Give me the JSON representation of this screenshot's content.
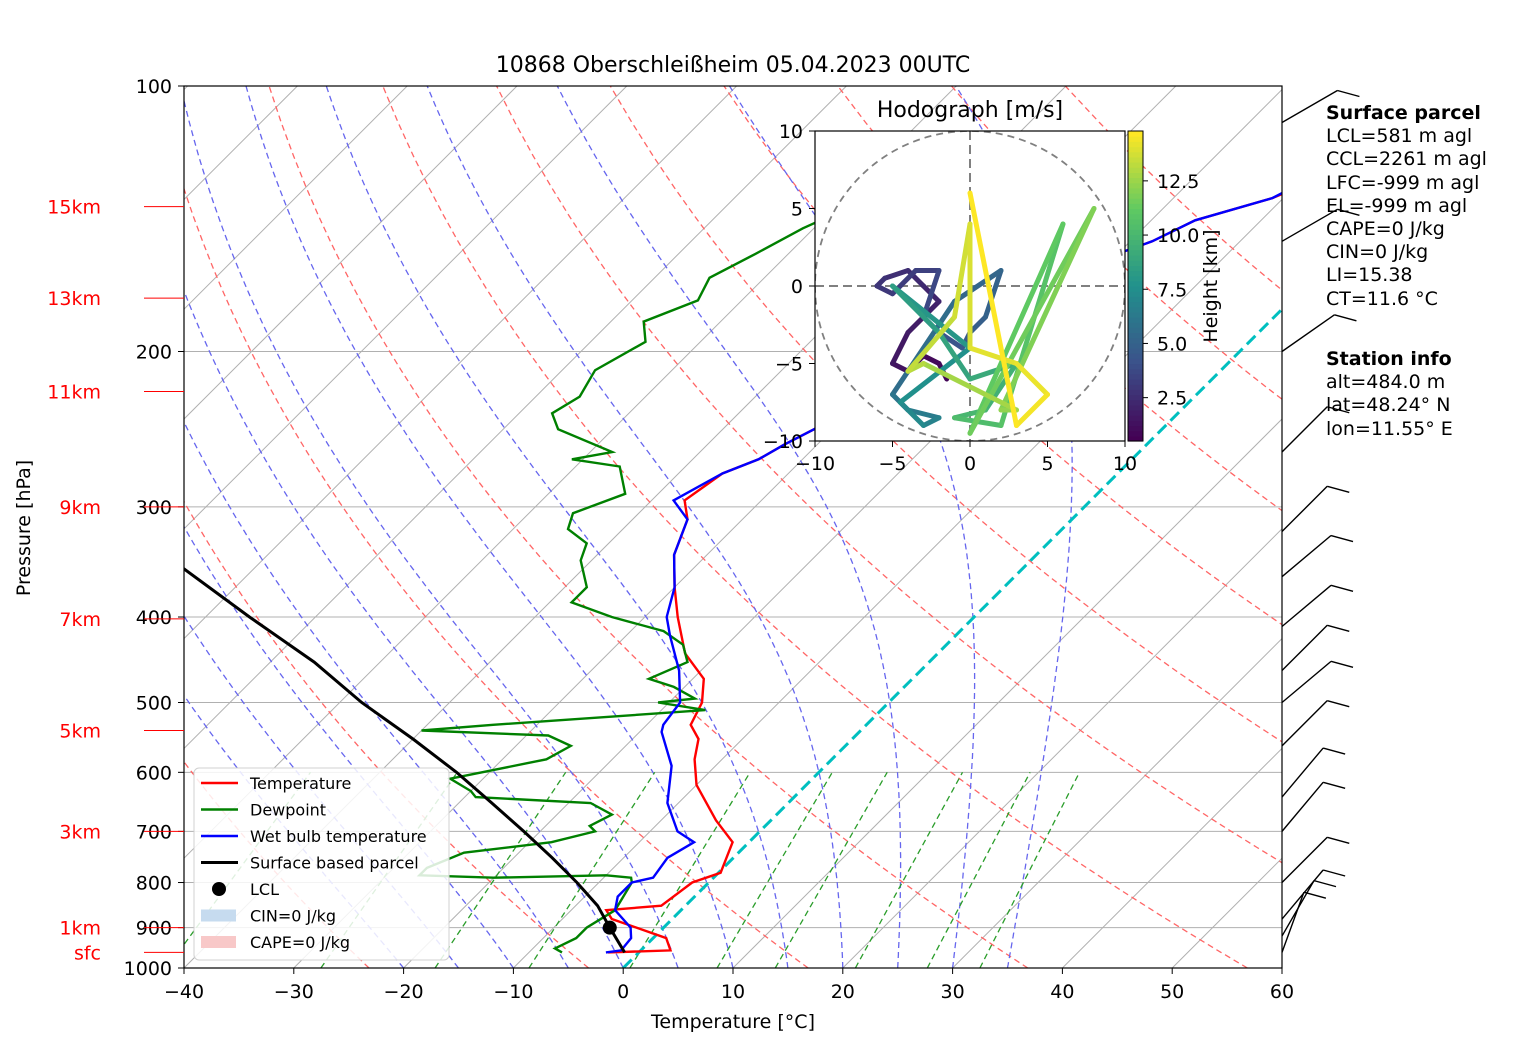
{
  "chart_data": [
    {
      "type": "line",
      "subtype": "skew-T log-p",
      "title": "10868 Oberschleißheim 05.04.2023 00UTC",
      "xlabel": "Temperature [°C]",
      "ylabel": "Pressure [hPa]",
      "xlim": [
        -40,
        60
      ],
      "ylim": [
        1000,
        100
      ],
      "y_scale": "log",
      "x_ticks": [
        "−40",
        "−30",
        "−20",
        "−10",
        "0",
        "10",
        "20",
        "30",
        "40",
        "50",
        "60"
      ],
      "y_ticks": [
        "100",
        "200",
        "300",
        "400",
        "500",
        "600",
        "700",
        "800",
        "900",
        "1000"
      ],
      "height_labels": [
        {
          "label": "15km",
          "p": 137
        },
        {
          "label": "13km",
          "p": 174
        },
        {
          "label": "11km",
          "p": 222
        },
        {
          "label": "9km",
          "p": 300
        },
        {
          "label": "7km",
          "p": 402
        },
        {
          "label": "5km",
          "p": 538
        },
        {
          "label": "3km",
          "p": 700
        },
        {
          "label": "1km",
          "p": 900
        },
        {
          "label": "sfc",
          "p": 960
        }
      ],
      "series": [
        {
          "name": "Temperature",
          "color": "#ff0000",
          "points": [
            [
              -2.8,
              960
            ],
            [
              2.7,
              955
            ],
            [
              1.2,
              925
            ],
            [
              -5.5,
              880
            ],
            [
              -6.8,
              860
            ],
            [
              -2.2,
              850
            ],
            [
              -1.5,
              800
            ],
            [
              0.2,
              780
            ],
            [
              -1.5,
              720
            ],
            [
              -5,
              680
            ],
            [
              -10,
              620
            ],
            [
              -12.5,
              580
            ],
            [
              -14,
              550
            ],
            [
              -16,
              530
            ],
            [
              -17,
              500
            ],
            [
              -19,
              470
            ],
            [
              -23,
              440
            ],
            [
              -27,
              400
            ],
            [
              -30,
              370
            ],
            [
              -33,
              340
            ],
            [
              -35,
              310
            ],
            [
              -37,
              295
            ],
            [
              -36,
              275
            ],
            [
              -34,
              265
            ],
            [
              -33,
              255
            ],
            [
              -31,
              240
            ],
            [
              -30,
              225
            ],
            [
              -29,
              210
            ],
            [
              -28,
              195
            ],
            [
              -27,
              185
            ],
            [
              -27,
              176
            ],
            [
              -23,
              170
            ],
            [
              -22,
              160
            ],
            [
              -18,
              150
            ],
            [
              -16,
              142
            ],
            [
              -11,
              134
            ],
            [
              -9.5,
              130
            ],
            [
              -9.5,
              128
            ]
          ]
        },
        {
          "name": "Dewpoint",
          "color": "#008000",
          "points": [
            [
              -7,
              960
            ],
            [
              -8,
              950
            ],
            [
              -7,
              925
            ],
            [
              -7,
              900
            ],
            [
              -6,
              860
            ],
            [
              -7,
              800
            ],
            [
              -7.5,
              790
            ],
            [
              -10,
              785
            ],
            [
              -20,
              790
            ],
            [
              -27,
              785
            ],
            [
              -27,
              770
            ],
            [
              -25,
              740
            ],
            [
              -18,
              720
            ],
            [
              -15,
              700
            ],
            [
              -16,
              690
            ],
            [
              -15,
              670
            ],
            [
              -18,
              650
            ],
            [
              -29,
              640
            ],
            [
              -30,
              630
            ],
            [
              -33,
              610
            ],
            [
              -26,
              580
            ],
            [
              -25,
              560
            ],
            [
              -28,
              545
            ],
            [
              -40,
              538
            ],
            [
              -34,
              530
            ],
            [
              -16,
              510
            ],
            [
              -21,
              500
            ],
            [
              -18,
              495
            ],
            [
              -21,
              480
            ],
            [
              -24,
              470
            ],
            [
              -22,
              450
            ],
            [
              -24,
              430
            ],
            [
              -27,
              415
            ],
            [
              -33,
              400
            ],
            [
              -38,
              385
            ],
            [
              -38,
              370
            ],
            [
              -41,
              345
            ],
            [
              -42,
              330
            ],
            [
              -45,
              318
            ],
            [
              -46,
              305
            ],
            [
              -43,
              290
            ],
            [
              -46,
              270
            ],
            [
              -51,
              265
            ],
            [
              -48,
              260
            ],
            [
              -55,
              245
            ],
            [
              -57,
              235
            ],
            [
              -56,
              225
            ],
            [
              -57,
              210
            ],
            [
              -55,
              195
            ],
            [
              -57,
              185
            ],
            [
              -54,
              175
            ],
            [
              -55,
              165
            ],
            [
              -53,
              155
            ],
            [
              -51,
              145
            ],
            [
              -48,
              135
            ],
            [
              -45,
              130
            ],
            [
              -44,
              128
            ]
          ]
        },
        {
          "name": "Wet bulb temperature",
          "color": "#0000ff",
          "points": [
            [
              -3,
              960
            ],
            [
              -1.8,
              955
            ],
            [
              -2,
              925
            ],
            [
              -3,
              900
            ],
            [
              -6,
              860
            ],
            [
              -7,
              830
            ],
            [
              -7,
              800
            ],
            [
              -5.5,
              790
            ],
            [
              -6,
              750
            ],
            [
              -5,
              720
            ],
            [
              -7.5,
              700
            ],
            [
              -11,
              650
            ],
            [
              -14,
              590
            ],
            [
              -18,
              540
            ],
            [
              -18.5,
              530
            ],
            [
              -19,
              500
            ],
            [
              -22,
              460
            ],
            [
              -26,
              420
            ],
            [
              -28,
              400
            ],
            [
              -30,
              370
            ],
            [
              -33,
              340
            ],
            [
              -35,
              310
            ],
            [
              -38,
              295
            ],
            [
              -36,
              275
            ],
            [
              -34,
              265
            ],
            [
              -33,
              255
            ],
            [
              -31,
              240
            ],
            [
              -30,
              225
            ],
            [
              -29.5,
              210
            ],
            [
              -28.5,
              195
            ],
            [
              -27.5,
              185
            ],
            [
              -27.5,
              176
            ],
            [
              -23,
              170
            ],
            [
              -22,
              160
            ],
            [
              -18,
              150
            ],
            [
              -16,
              142
            ],
            [
              -11,
              134
            ],
            [
              -10,
              130
            ],
            [
              -10,
              128
            ]
          ]
        },
        {
          "name": "Surface based parcel",
          "color": "#000000",
          "points": [
            [
              -1.3,
              960
            ],
            [
              -4.9,
              900
            ],
            [
              -8,
              850
            ],
            [
              -12,
              800
            ],
            [
              -16.5,
              750
            ],
            [
              -21.5,
              700
            ],
            [
              -27,
              650
            ],
            [
              -33,
              600
            ],
            [
              -40,
              550
            ],
            [
              -48,
              500
            ],
            [
              -56,
              450
            ],
            [
              -66,
              400
            ],
            [
              -77,
              350
            ],
            [
              -89,
              300
            ]
          ]
        }
      ],
      "lcl": {
        "name": "LCL",
        "t": -4.9,
        "p": 900
      },
      "legend": [
        "Temperature",
        "Dewpoint",
        "Wet bulb temperature",
        "Surface based parcel",
        "LCL",
        "CIN=0 J/kg",
        "CAPE=0 J/kg"
      ],
      "legend_position": "lower-left",
      "grid": true
    },
    {
      "type": "line",
      "subtype": "hodograph",
      "title": "Hodograph [m/s]",
      "xlim": [
        -10,
        10
      ],
      "ylim": [
        -10,
        10
      ],
      "x_ticks": [
        "−10",
        "−5",
        "0",
        "5",
        "10"
      ],
      "y_ticks": [
        "−10",
        "−5",
        "0",
        "5",
        "10"
      ],
      "colorbar": {
        "label": "Height [km]",
        "ticks": [
          "2.5",
          "5.0",
          "7.5",
          "10.0",
          "12.5"
        ],
        "range": [
          0.5,
          14.8
        ]
      },
      "wind_points": [
        [
          -1.5,
          -6,
          0.5
        ],
        [
          -2,
          -5,
          0.7
        ],
        [
          -3,
          -4.5,
          0.9
        ],
        [
          -4,
          -5.5,
          1.1
        ],
        [
          -5,
          -5,
          1.3
        ],
        [
          -4,
          -3,
          1.5
        ],
        [
          -3,
          -2,
          1.7
        ],
        [
          -2,
          -1,
          1.9
        ],
        [
          -3,
          0,
          2.1
        ],
        [
          -4,
          1,
          2.3
        ],
        [
          -5.5,
          0.5,
          2.5
        ],
        [
          -6,
          0,
          2.7
        ],
        [
          -5,
          -0.5,
          2.9
        ],
        [
          -3.5,
          1,
          3.1
        ],
        [
          -2,
          1,
          3.3
        ],
        [
          -3,
          -2,
          3.6
        ],
        [
          -2,
          -3,
          3.9
        ],
        [
          -0.5,
          -4,
          4.2
        ],
        [
          0,
          -3,
          4.5
        ],
        [
          1,
          -2,
          4.8
        ],
        [
          2,
          1,
          5.0
        ],
        [
          -1,
          -1,
          5.2
        ],
        [
          -5,
          -7,
          5.6
        ],
        [
          -4,
          -8,
          6.0
        ],
        [
          -2,
          -8.5,
          6.4
        ],
        [
          -3,
          -9,
          6.8
        ],
        [
          -4.5,
          -7.5,
          7.2
        ],
        [
          0,
          -4,
          7.6
        ],
        [
          -5,
          0,
          8.0
        ],
        [
          -2,
          -3,
          8.4
        ],
        [
          0,
          -6,
          8.8
        ],
        [
          3,
          -5,
          9.2
        ],
        [
          1,
          -8,
          9.6
        ],
        [
          -1,
          -8.5,
          10.0
        ],
        [
          2,
          -9,
          10.4
        ],
        [
          6,
          4,
          10.8
        ],
        [
          0,
          -9.5,
          11.2
        ],
        [
          8,
          5,
          11.6
        ],
        [
          2,
          -8,
          12.0
        ],
        [
          3,
          -8,
          12.4
        ],
        [
          -3,
          -5,
          12.8
        ],
        [
          -4,
          -5.5,
          13.2
        ],
        [
          -1,
          -2,
          13.5
        ],
        [
          0,
          4,
          13.8
        ],
        [
          0,
          -4,
          14.0
        ],
        [
          3,
          -5,
          14.2
        ],
        [
          5,
          -7,
          14.4
        ],
        [
          3,
          -9,
          14.6
        ],
        [
          0,
          6,
          14.8
        ]
      ]
    }
  ],
  "surface_parcel": {
    "title": "Surface parcel",
    "lines": [
      "LCL=581 m agl",
      "CCL=2261 m agl",
      "LFC=-999 m agl",
      "EL=-999 m agl",
      "CAPE=0 J/kg",
      "CIN=0 J/kg",
      "LI=15.38",
      "CT=11.6 °C"
    ]
  },
  "station_info": {
    "title": "Station info",
    "lines": [
      "alt=484.0 m",
      "lat=48.24° N",
      "lon=11.55° E"
    ]
  },
  "wind_barbs": [
    [
      960,
      20
    ],
    [
      920,
      30
    ],
    [
      880,
      40
    ],
    [
      800,
      45
    ],
    [
      700,
      40
    ],
    [
      640,
      40
    ],
    [
      560,
      45
    ],
    [
      500,
      50
    ],
    [
      460,
      45
    ],
    [
      410,
      50
    ],
    [
      360,
      50
    ],
    [
      320,
      45
    ],
    [
      260,
      45
    ],
    [
      200,
      55
    ],
    [
      150,
      60
    ],
    [
      110,
      60
    ]
  ],
  "colors": {
    "temperature": "#ff0000",
    "dewpoint": "#008000",
    "wetbulb": "#0000ff",
    "parcel": "#000000",
    "dry_adiabat": "#ff6666",
    "moist_adiabat": "#6666ee",
    "mixing_ratio": "#2a9d2a",
    "isotherm_zero": "#00bfbf",
    "height_label": "#ff0000"
  }
}
